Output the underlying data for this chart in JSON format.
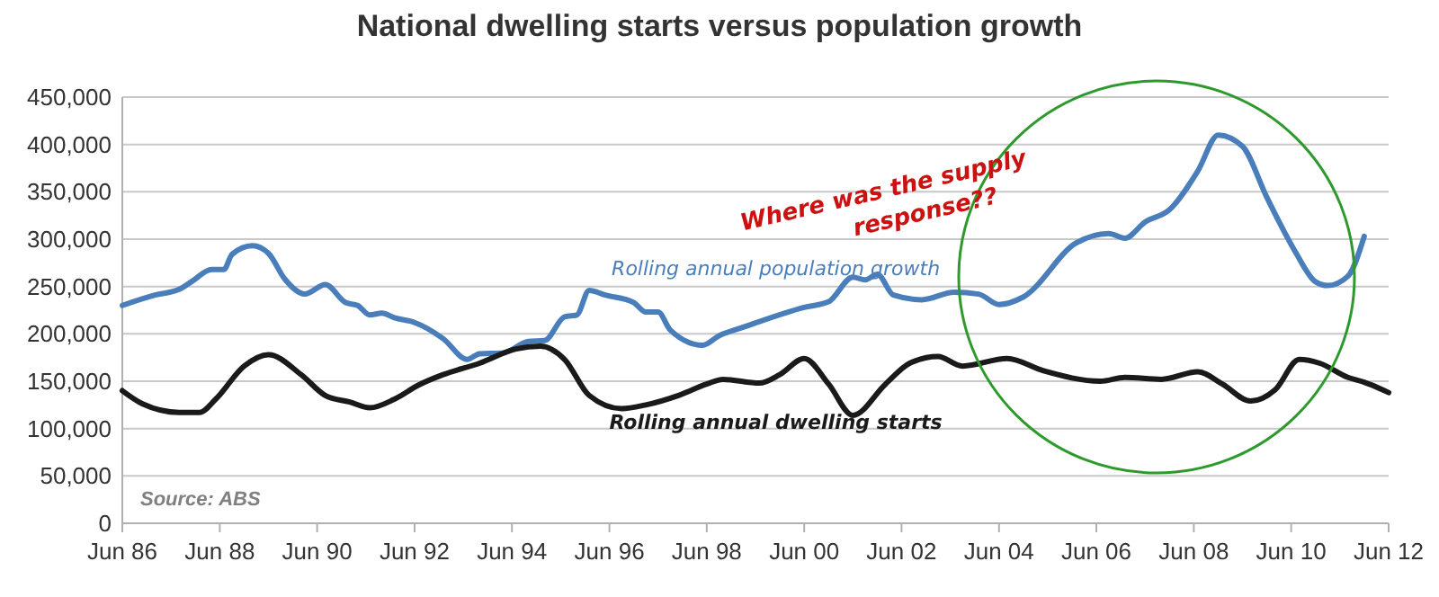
{
  "chart_data": {
    "type": "line",
    "title": "National dwelling starts versus population growth",
    "annotations": [
      "Where was the supply response??",
      "Source: ABS"
    ],
    "xlim": [
      "1986-06",
      "2012-06"
    ],
    "xticks": [
      {
        "value": "1986-06",
        "label": "Jun 86"
      },
      {
        "value": "1988-06",
        "label": "Jun 88"
      },
      {
        "value": "1990-06",
        "label": "Jun 90"
      },
      {
        "value": "1992-06",
        "label": "Jun 92"
      },
      {
        "value": "1994-06",
        "label": "Jun 94"
      },
      {
        "value": "1996-06",
        "label": "Jun 96"
      },
      {
        "value": "1998-06",
        "label": "Jun 98"
      },
      {
        "value": "2000-06",
        "label": "Jun 00"
      },
      {
        "value": "2002-06",
        "label": "Jun 02"
      },
      {
        "value": "2004-06",
        "label": "Jun 04"
      },
      {
        "value": "2006-06",
        "label": "Jun 06"
      },
      {
        "value": "2008-06",
        "label": "Jun 08"
      },
      {
        "value": "2010-06",
        "label": "Jun 10"
      },
      {
        "value": "2012-06",
        "label": "Jun 12"
      }
    ],
    "ylim": [
      0,
      450000
    ],
    "yticks": [
      {
        "value": 0,
        "label": "0"
      },
      {
        "value": 50000,
        "label": "50,000"
      },
      {
        "value": 100000,
        "label": "100,000"
      },
      {
        "value": 150000,
        "label": "150,000"
      },
      {
        "value": 200000,
        "label": "200,000"
      },
      {
        "value": 250000,
        "label": "250,000"
      },
      {
        "value": 300000,
        "label": "300,000"
      },
      {
        "value": 350000,
        "label": "350,000"
      },
      {
        "value": 400000,
        "label": "400,000"
      },
      {
        "value": 450000,
        "label": "450,000"
      }
    ],
    "grid": "y",
    "series": [
      {
        "name": "Rolling annual population growth",
        "color": "#4a7ebb",
        "x": [
          "1986-06",
          "1987-02",
          "1987-08",
          "1987-11",
          "1988-04",
          "1988-07",
          "1988-09",
          "1989-02",
          "1989-06",
          "1989-10",
          "1990-03",
          "1990-08",
          "1991-01",
          "1991-04",
          "1991-07",
          "1991-10",
          "1992-01",
          "1992-06",
          "1993-01",
          "1993-07",
          "1993-10",
          "1994-04",
          "1994-10",
          "1995-02",
          "1995-07",
          "1995-10",
          "1996-01",
          "1996-05",
          "1996-12",
          "1997-03",
          "1997-06",
          "1997-09",
          "1998-05",
          "1998-09",
          "1999-03",
          "2000-06",
          "2000-12",
          "2001-06",
          "2001-09",
          "2001-12",
          "2002-04",
          "2002-11",
          "2003-07",
          "2004-01",
          "2004-06",
          "2004-12",
          "2006-01",
          "2006-09",
          "2007-01",
          "2007-06",
          "2007-12",
          "2008-07",
          "2008-12",
          "2009-06",
          "2009-12",
          "2010-07",
          "2010-12",
          "2011-03",
          "2011-08",
          "2011-12"
        ],
        "values": [
          230000,
          241000,
          247000,
          255000,
          268000,
          268000,
          284000,
          293000,
          285000,
          258000,
          242000,
          252000,
          233000,
          230000,
          220000,
          222000,
          217000,
          212000,
          195000,
          173000,
          179000,
          180000,
          192000,
          193000,
          218000,
          220000,
          246000,
          241000,
          233000,
          223000,
          223000,
          204000,
          188000,
          198000,
          207000,
          228000,
          234000,
          260000,
          257000,
          263000,
          241000,
          236000,
          244000,
          242000,
          231000,
          239000,
          296000,
          306000,
          301000,
          318000,
          331000,
          372000,
          410000,
          398000,
          344000,
          287000,
          255000,
          251000,
          261000,
          303000
        ]
      },
      {
        "name": "Rolling annual dwelling starts",
        "color": "#1a1a1a",
        "x": [
          "1986-06",
          "1986-11",
          "1987-08",
          "1988-01",
          "1988-05",
          "1988-12",
          "1989-06",
          "1990-02",
          "1990-08",
          "1991-02",
          "1991-07",
          "1992-01",
          "1992-07",
          "1993-01",
          "1993-10",
          "1994-07",
          "1995-01",
          "1995-07",
          "1996-01",
          "1996-09",
          "1997-03",
          "1997-11",
          "1998-06",
          "1998-10",
          "1999-07",
          "1999-12",
          "2000-06",
          "2000-12",
          "2001-06",
          "2002-02",
          "2002-08",
          "2003-03",
          "2003-09",
          "2004-08",
          "2005-05",
          "2006-07",
          "2007-01",
          "2007-10",
          "2008-07",
          "2009-01",
          "2009-08",
          "2010-02",
          "2010-08",
          "2011-01",
          "2011-08",
          "2011-12",
          "2012-06"
        ],
        "values": [
          140000,
          126000,
          117000,
          117000,
          131000,
          166000,
          178000,
          157000,
          135000,
          128000,
          122000,
          131000,
          146000,
          157000,
          169000,
          184000,
          187000,
          173000,
          135000,
          121000,
          125000,
          135000,
          147000,
          152000,
          148000,
          157000,
          174000,
          147000,
          114000,
          147000,
          169000,
          176000,
          166000,
          174000,
          161000,
          150000,
          154000,
          152000,
          160000,
          147000,
          129000,
          141000,
          173000,
          169000,
          154000,
          149000,
          138000
        ]
      }
    ]
  }
}
